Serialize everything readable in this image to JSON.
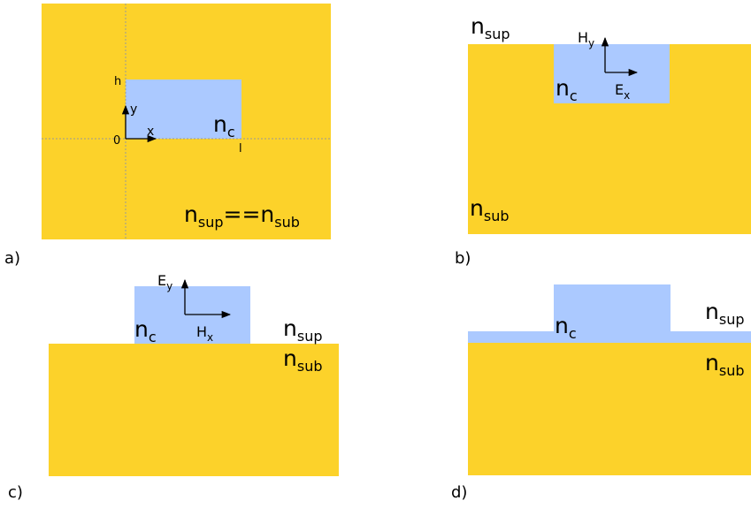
{
  "colors": {
    "substrate": "#fcd22a",
    "core": "#abc9ff",
    "axis": "#000000",
    "grid": "#999999"
  },
  "panel_a": {
    "label": "a)",
    "core": "c",
    "equation": {
      "sup": "sup",
      "ops": "==",
      "sub": "sub"
    },
    "tick_h": "h",
    "tick_zero": "0",
    "tick_l": "l",
    "axis_x": "x",
    "axis_y": "y"
  },
  "panel_b": {
    "label": "b)",
    "sup": "sup",
    "sub": "sub",
    "core": "c",
    "field_h": "y",
    "field_e": "x"
  },
  "panel_c": {
    "label": "c)",
    "sup": "sup",
    "sub": "sub",
    "core": "c",
    "field_e": "y",
    "field_h": "x"
  },
  "panel_d": {
    "label": "d)",
    "sup": "sup",
    "sub": "sub",
    "core": "c"
  }
}
